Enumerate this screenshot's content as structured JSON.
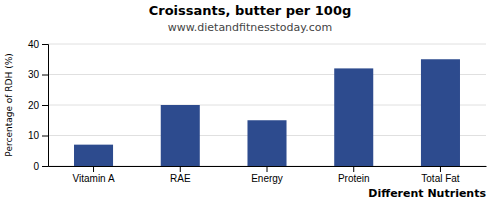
{
  "chart_data": {
    "type": "bar",
    "title": "Croissants, butter per 100g",
    "subtitle": "www.dietandfitnesstoday.com",
    "xlabel": "Different Nutrients",
    "ylabel": "Percentage of RDH (%)",
    "categories": [
      "Vitamin A",
      "RAE",
      "Energy",
      "Protein",
      "Total Fat"
    ],
    "values": [
      7,
      20,
      15,
      32,
      35
    ],
    "color": "#2d4b8e",
    "ylim": [
      0,
      40
    ],
    "yticks": [
      0,
      10,
      20,
      30,
      40
    ],
    "grid": true
  }
}
